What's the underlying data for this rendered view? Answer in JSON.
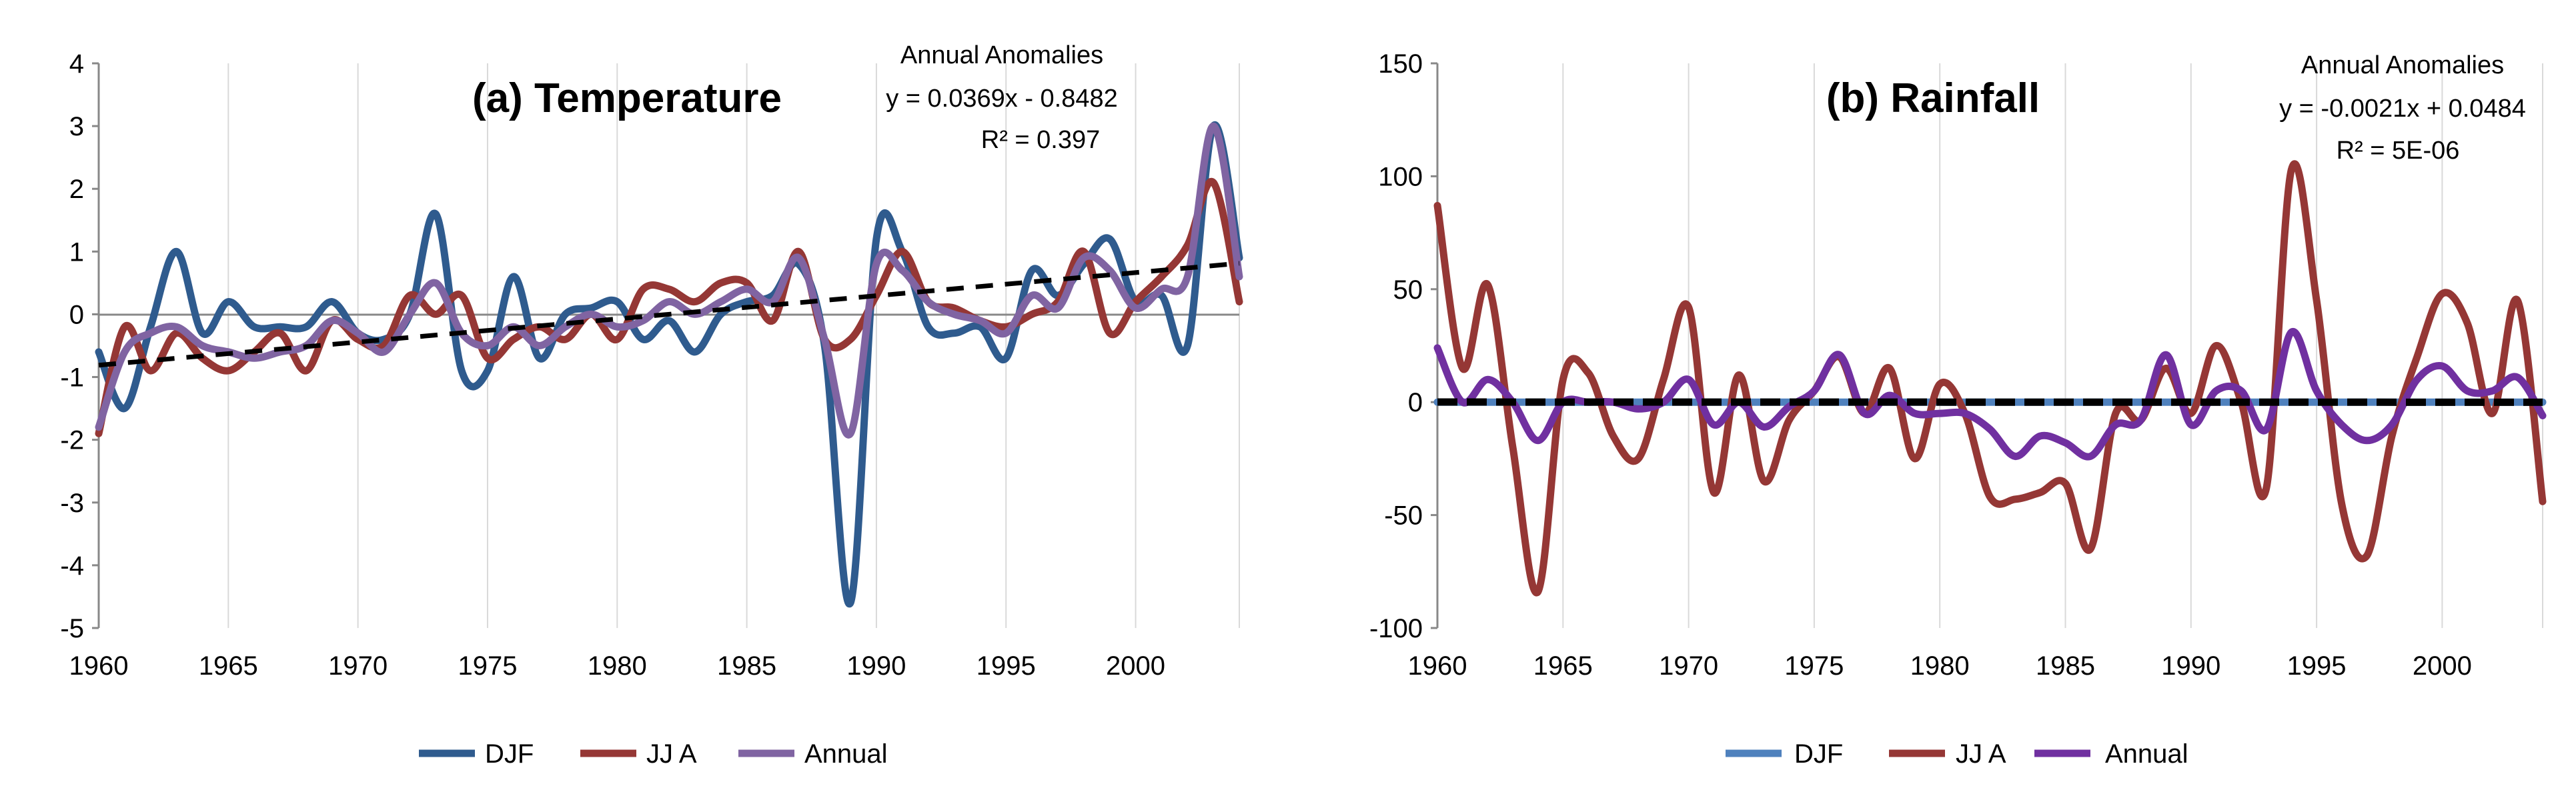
{
  "chart_data": [
    {
      "type": "line",
      "title": "(a) Temperature",
      "xlabel": "",
      "ylabel": "",
      "xlim": [
        1960,
        2004
      ],
      "ylim": [
        -5,
        4
      ],
      "xticks": [
        1960,
        1965,
        1970,
        1975,
        1980,
        1985,
        1990,
        1995,
        2000
      ],
      "yticks": [
        -5,
        -4,
        -3,
        -2,
        -1,
        0,
        1,
        2,
        3,
        4
      ],
      "grid": "vertical",
      "legend_position": "bottom",
      "annotation": {
        "line1": "Annual Anomalies",
        "line2": "y = 0.0369x - 0.8482",
        "line3": "R² = 0.397"
      },
      "trend": {
        "slope": 0.0369,
        "intercept": -0.8482,
        "style": "dashed"
      },
      "x": [
        1960,
        1961,
        1962,
        1963,
        1964,
        1965,
        1966,
        1967,
        1968,
        1969,
        1970,
        1971,
        1972,
        1973,
        1974,
        1975,
        1976,
        1977,
        1978,
        1979,
        1980,
        1981,
        1982,
        1983,
        1984,
        1985,
        1986,
        1987,
        1988,
        1989,
        1990,
        1991,
        1992,
        1993,
        1994,
        1995,
        1996,
        1997,
        1998,
        1999,
        2000,
        2001,
        2002,
        2003,
        2004
      ],
      "series": [
        {
          "name": "DJF",
          "color": "#2f5b8e",
          "values": [
            -0.6,
            -1.5,
            -0.2,
            1.0,
            -0.3,
            0.2,
            -0.2,
            -0.2,
            -0.2,
            0.2,
            -0.3,
            -0.4,
            0.0,
            1.6,
            -0.9,
            -0.9,
            0.6,
            -0.7,
            0.0,
            0.1,
            0.2,
            -0.4,
            -0.1,
            -0.6,
            0.0,
            0.2,
            0.3,
            0.8,
            -0.5,
            -4.6,
            1.2,
            1.0,
            -0.2,
            -0.3,
            -0.2,
            -0.7,
            0.7,
            0.3,
            0.8,
            1.2,
            0.2,
            0.3,
            -0.5,
            3.0,
            0.9
          ]
        },
        {
          "name": "JJ A",
          "color": "#953735",
          "values": [
            -1.9,
            -0.2,
            -0.9,
            -0.3,
            -0.7,
            -0.9,
            -0.6,
            -0.3,
            -0.9,
            -0.1,
            -0.4,
            -0.5,
            0.3,
            0.0,
            0.3,
            -0.7,
            -0.4,
            -0.2,
            -0.4,
            0.0,
            -0.4,
            0.4,
            0.4,
            0.2,
            0.5,
            0.5,
            -0.1,
            1.0,
            -0.4,
            -0.4,
            0.3,
            1.0,
            0.2,
            0.1,
            -0.1,
            -0.2,
            0.0,
            0.2,
            1.0,
            -0.3,
            0.2,
            0.6,
            1.1,
            2.1,
            0.2
          ]
        },
        {
          "name": "Annual",
          "color": "#8064a2",
          "values": [
            -1.8,
            -0.6,
            -0.3,
            -0.2,
            -0.5,
            -0.6,
            -0.7,
            -0.6,
            -0.5,
            -0.1,
            -0.3,
            -0.6,
            0.0,
            0.5,
            -0.3,
            -0.5,
            -0.2,
            -0.5,
            -0.2,
            0.0,
            -0.2,
            -0.1,
            0.2,
            0.0,
            0.2,
            0.4,
            0.2,
            0.9,
            -0.4,
            -1.9,
            0.8,
            0.7,
            0.2,
            0.0,
            -0.1,
            -0.3,
            0.3,
            0.1,
            0.9,
            0.7,
            0.1,
            0.4,
            0.6,
            3.0,
            0.6
          ]
        }
      ]
    },
    {
      "type": "line",
      "title": "(b) Rainfall",
      "xlabel": "",
      "ylabel": "",
      "xlim": [
        1960,
        2004
      ],
      "ylim": [
        -100,
        150
      ],
      "xticks": [
        1960,
        1965,
        1970,
        1975,
        1980,
        1985,
        1990,
        1995,
        2000
      ],
      "yticks": [
        -100,
        -50,
        0,
        50,
        100,
        150
      ],
      "grid": "vertical",
      "legend_position": "bottom",
      "annotation": {
        "line1": "Annual Anomalies",
        "line2": "y = -0.0021x + 0.0484",
        "line3": "R² = 5E-06"
      },
      "trend": {
        "slope": -0.0021,
        "intercept": 0.0484,
        "style": "dashed"
      },
      "x": [
        1960,
        1961,
        1962,
        1963,
        1964,
        1965,
        1966,
        1967,
        1968,
        1969,
        1970,
        1971,
        1972,
        1973,
        1974,
        1975,
        1976,
        1977,
        1978,
        1979,
        1980,
        1981,
        1982,
        1983,
        1984,
        1985,
        1986,
        1987,
        1988,
        1989,
        1990,
        1991,
        1992,
        1993,
        1994,
        1995,
        1996,
        1997,
        1998,
        1999,
        2000,
        2001,
        2002,
        2003,
        2004
      ],
      "series": [
        {
          "name": "DJF",
          "color": "#4f81bd",
          "values": [
            0,
            0,
            0,
            0,
            0,
            0,
            0,
            0,
            0,
            0,
            0,
            0,
            0,
            0,
            0,
            0,
            0,
            0,
            0,
            0,
            0,
            0,
            0,
            0,
            0,
            0,
            0,
            0,
            0,
            0,
            0,
            0,
            0,
            0,
            0,
            0,
            0,
            0,
            0,
            0,
            0,
            0,
            0,
            0,
            0
          ]
        },
        {
          "name": "JJ A",
          "color": "#953735",
          "values": [
            87,
            15,
            52,
            -20,
            -84,
            10,
            13,
            -15,
            -25,
            10,
            42,
            -40,
            12,
            -35,
            -8,
            5,
            20,
            -5,
            15,
            -25,
            8,
            -5,
            -42,
            -43,
            -40,
            -36,
            -65,
            -5,
            -8,
            15,
            -5,
            25,
            0,
            -38,
            103,
            45,
            -45,
            -68,
            -15,
            20,
            48,
            35,
            -5,
            45,
            -44
          ]
        },
        {
          "name": "Annual",
          "color": "#7030a0",
          "values": [
            24,
            0,
            10,
            0,
            -17,
            0,
            0,
            0,
            -3,
            0,
            10,
            -10,
            0,
            -11,
            -2,
            5,
            21,
            -5,
            3,
            -5,
            -5,
            -5,
            -12,
            -24,
            -15,
            -18,
            -24,
            -10,
            -8,
            21,
            -10,
            5,
            5,
            -12,
            31,
            5,
            -10,
            -17,
            -10,
            10,
            16,
            5,
            5,
            11,
            -6
          ]
        }
      ]
    }
  ]
}
